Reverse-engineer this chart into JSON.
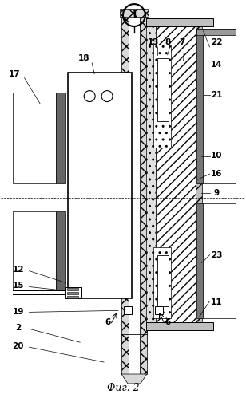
{
  "fig_label": "Фиг. 2",
  "background_color": "#ffffff",
  "figsize": [
    3.08,
    4.99
  ],
  "dpi": 100
}
